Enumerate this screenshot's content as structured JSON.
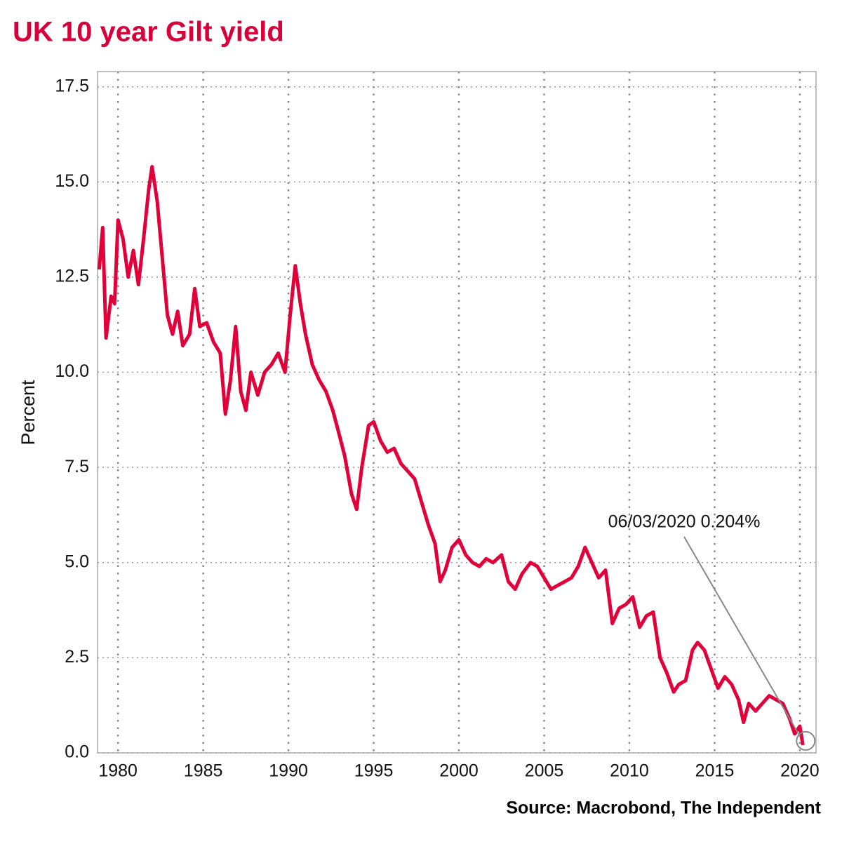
{
  "chart_data": {
    "type": "line",
    "title": "UK 10 year Gilt yield",
    "y_label": "Percent",
    "source": "Source: Macrobond, The Independent",
    "annotation": "06/03/2020 0.204%",
    "grid": true,
    "xlim": [
      1978.8,
      2020.95
    ],
    "xticks": [
      1980,
      1985,
      1990,
      1995,
      2000,
      2005,
      2010,
      2015,
      2020
    ],
    "ylim": [
      0,
      17.9
    ],
    "yticks": [
      {
        "value": 0,
        "label": "0.0"
      },
      2.5,
      {
        "value": 5,
        "label": "5.0"
      },
      7.5,
      {
        "value": 10,
        "label": "10.0"
      },
      12.5,
      {
        "value": 15,
        "label": "15.0"
      },
      17.5
    ],
    "x": [
      1978.9,
      1979.1,
      1979.3,
      1979.6,
      1979.8,
      1980.0,
      1980.3,
      1980.6,
      1980.9,
      1981.2,
      1981.5,
      1981.8,
      1982.0,
      1982.3,
      1982.6,
      1982.9,
      1983.2,
      1983.5,
      1983.8,
      1984.2,
      1984.5,
      1984.8,
      1985.2,
      1985.6,
      1986.0,
      1986.3,
      1986.6,
      1986.9,
      1987.2,
      1987.5,
      1987.8,
      1988.2,
      1988.6,
      1989.0,
      1989.4,
      1989.8,
      1990.1,
      1990.4,
      1990.7,
      1991.0,
      1991.4,
      1991.8,
      1992.2,
      1992.6,
      1992.9,
      1993.3,
      1993.7,
      1994.0,
      1994.3,
      1994.7,
      1995.0,
      1995.4,
      1995.8,
      1996.2,
      1996.6,
      1997.0,
      1997.4,
      1997.8,
      1998.2,
      1998.6,
      1998.9,
      1999.2,
      1999.6,
      2000.0,
      2000.4,
      2000.8,
      2001.2,
      2001.6,
      2002.0,
      2002.5,
      2002.9,
      2003.3,
      2003.7,
      2004.2,
      2004.6,
      2005.0,
      2005.4,
      2005.8,
      2006.2,
      2006.6,
      2007.0,
      2007.4,
      2007.8,
      2008.2,
      2008.6,
      2009.0,
      2009.4,
      2009.8,
      2010.2,
      2010.6,
      2011.0,
      2011.4,
      2011.8,
      2012.2,
      2012.6,
      2012.9,
      2013.3,
      2013.7,
      2014.0,
      2014.4,
      2014.8,
      2015.2,
      2015.6,
      2016.0,
      2016.4,
      2016.7,
      2017.0,
      2017.4,
      2017.8,
      2018.2,
      2018.6,
      2019.0,
      2019.4,
      2019.7,
      2020.0,
      2020.18
    ],
    "series": [
      {
        "name": "UK 10 year Gilt yield",
        "color": "#e2003a",
        "values": [
          12.7,
          13.8,
          10.9,
          12.0,
          11.8,
          14.0,
          13.5,
          12.5,
          13.2,
          12.3,
          13.5,
          14.8,
          15.4,
          14.5,
          13.0,
          11.5,
          11.0,
          11.6,
          10.7,
          11.0,
          12.2,
          11.2,
          11.3,
          10.8,
          10.5,
          8.9,
          9.8,
          11.2,
          9.5,
          9.0,
          10.0,
          9.4,
          10.0,
          10.2,
          10.5,
          10.0,
          11.5,
          12.8,
          11.8,
          11.0,
          10.2,
          9.8,
          9.5,
          9.0,
          8.5,
          7.8,
          6.8,
          6.4,
          7.5,
          8.6,
          8.7,
          8.2,
          7.9,
          8.0,
          7.6,
          7.4,
          7.2,
          6.6,
          6.0,
          5.5,
          4.5,
          4.8,
          5.4,
          5.6,
          5.2,
          5.0,
          4.9,
          5.1,
          5.0,
          5.2,
          4.5,
          4.3,
          4.7,
          5.0,
          4.9,
          4.6,
          4.3,
          4.4,
          4.5,
          4.6,
          4.9,
          5.4,
          5.0,
          4.6,
          4.8,
          3.4,
          3.8,
          3.9,
          4.1,
          3.3,
          3.6,
          3.7,
          2.5,
          2.1,
          1.6,
          1.8,
          1.9,
          2.7,
          2.9,
          2.7,
          2.2,
          1.7,
          2.0,
          1.8,
          1.4,
          0.8,
          1.3,
          1.1,
          1.3,
          1.5,
          1.4,
          1.3,
          0.9,
          0.5,
          0.7,
          0.204
        ]
      }
    ]
  }
}
